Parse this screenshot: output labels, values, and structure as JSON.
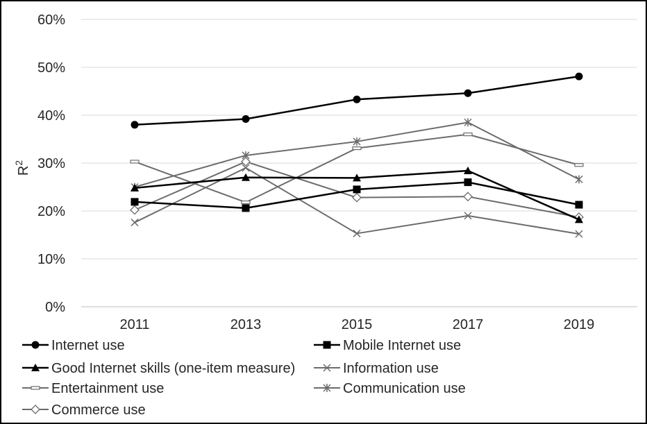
{
  "chart_data": {
    "type": "line",
    "title": "",
    "xlabel": "",
    "ylabel": "R",
    "ylabel_superscript": "2",
    "categories": [
      "2011",
      "2013",
      "2015",
      "2017",
      "2019"
    ],
    "y_ticks": [
      "0%",
      "10%",
      "20%",
      "30%",
      "40%",
      "50%",
      "60%"
    ],
    "ylim": [
      0,
      60
    ],
    "y_unit": "%",
    "grid": true,
    "legend_position": "bottom",
    "series": [
      {
        "name": "Internet use",
        "values": [
          38.0,
          39.2,
          43.3,
          44.6,
          48.1
        ],
        "color": "#000000",
        "marker": "circle",
        "width": 2.5
      },
      {
        "name": "Mobile Internet use",
        "values": [
          21.9,
          20.6,
          24.5,
          26.0,
          21.3
        ],
        "color": "#000000",
        "marker": "square",
        "width": 2.5
      },
      {
        "name": "Good Internet skills (one-item measure)",
        "values": [
          24.8,
          27.0,
          26.9,
          28.4,
          18.2
        ],
        "color": "#000000",
        "marker": "triangle",
        "width": 2.5
      },
      {
        "name": "Information use",
        "values": [
          17.6,
          29.0,
          15.3,
          19.0,
          15.2
        ],
        "color": "#6b6b6b",
        "marker": "x",
        "width": 2
      },
      {
        "name": "Entertainment use",
        "values": [
          30.3,
          21.8,
          33.1,
          36.0,
          29.6
        ],
        "color": "#6b6b6b",
        "marker": "dash",
        "width": 2
      },
      {
        "name": "Communication use",
        "values": [
          25.0,
          31.6,
          34.5,
          38.5,
          26.6
        ],
        "color": "#6b6b6b",
        "marker": "star",
        "width": 2
      },
      {
        "name": "Commerce use",
        "values": [
          20.2,
          30.3,
          22.8,
          23.0,
          18.7
        ],
        "color": "#6b6b6b",
        "marker": "diamond",
        "width": 2
      }
    ]
  }
}
